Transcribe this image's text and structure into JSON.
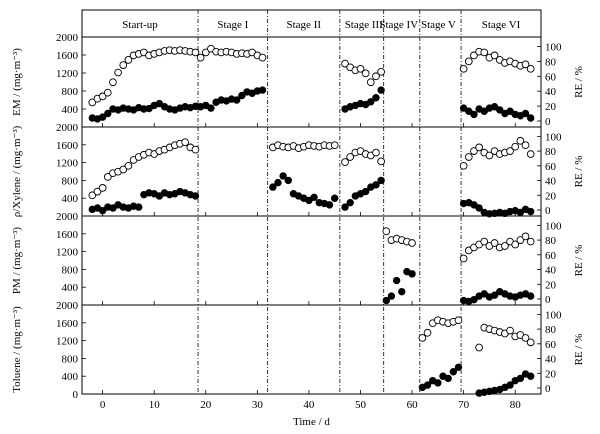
{
  "chart_data": {
    "type": "scatter",
    "x_axis": {
      "label": "Time / d",
      "ticks": [
        0,
        10,
        20,
        30,
        40,
        50,
        60,
        70,
        80
      ],
      "range": [
        -4,
        85
      ]
    },
    "stages": {
      "labels": [
        "Start-up",
        "Stage I",
        "Stage II",
        "Stage III",
        "Stage IV",
        "Stage V",
        "Stage VI"
      ],
      "boundaries": [
        18.5,
        32,
        46,
        54.5,
        61.5,
        69.5
      ]
    },
    "panels": [
      {
        "id": "em",
        "ylabel": "EM / (mg·m⁻³)",
        "ylabel_right": "RE / %",
        "left_ticks": [
          400,
          800,
          1200,
          1600,
          2000
        ],
        "left_range": [
          0,
          2000
        ],
        "right_ticks": [
          0,
          20,
          40,
          60,
          80,
          100
        ],
        "right_range": [
          0,
          110
        ],
        "series": [
          {
            "name": "Concentration",
            "marker": "filled",
            "segments": [
              {
                "x": [
                  -2,
                  -1,
                  0,
                  1,
                  2,
                  3,
                  4,
                  5,
                  6,
                  7,
                  8,
                  9,
                  10,
                  11,
                  12,
                  13,
                  14,
                  15,
                  16,
                  17,
                  18
                ],
                "y": [
                  200,
                  180,
                  220,
                  300,
                  400,
                  380,
                  420,
                  400,
                  380,
                  430,
                  400,
                  410,
                  480,
                  520,
                  450,
                  400,
                  380,
                  420,
                  450,
                  430,
                  460
                ]
              },
              {
                "x": [
                  19,
                  20,
                  21,
                  22,
                  23,
                  24,
                  25,
                  26,
                  27,
                  28,
                  29,
                  30,
                  31
                ],
                "y": [
                  450,
                  480,
                  420,
                  550,
                  600,
                  580,
                  620,
                  600,
                  700,
                  780,
                  750,
                  800,
                  820
                ]
              },
              {
                "x": [
                  47,
                  48,
                  49,
                  50,
                  51,
                  52,
                  53,
                  54
                ],
                "y": [
                  400,
                  450,
                  480,
                  520,
                  500,
                  560,
                  650,
                  820
                ]
              },
              {
                "x": [
                  70,
                  71,
                  72,
                  73,
                  74,
                  75,
                  76,
                  77,
                  78,
                  79,
                  80,
                  81,
                  82,
                  83
                ],
                "y": [
                  420,
                  350,
                  280,
                  400,
                  350,
                  420,
                  450,
                  380,
                  300,
                  350,
                  280,
                  250,
                  300,
                  200
                ]
              }
            ]
          },
          {
            "name": "RE",
            "marker": "open",
            "segments": [
              {
                "x": [
                  -2,
                  -1,
                  0,
                  1,
                  2,
                  3,
                  4,
                  5,
                  6,
                  7,
                  8,
                  9,
                  10,
                  11,
                  12,
                  13,
                  14,
                  15,
                  16,
                  17,
                  18
                ],
                "y": [
                  25,
                  30,
                  33,
                  38,
                  52,
                  65,
                  75,
                  82,
                  88,
                  90,
                  92,
                  88,
                  90,
                  92,
                  94,
                  95,
                  94,
                  95,
                  94,
                  93,
                  92
                ]
              },
              {
                "x": [
                  19,
                  20,
                  21,
                  22,
                  23,
                  24,
                  25,
                  26,
                  27,
                  28,
                  29,
                  30,
                  31
                ],
                "y": [
                  85,
                  92,
                  97,
                  93,
                  92,
                  93,
                  92,
                  90,
                  91,
                  90,
                  92,
                  88,
                  85
                ]
              },
              {
                "x": [
                  47,
                  48,
                  49,
                  50,
                  51,
                  52,
                  53,
                  54
                ],
                "y": [
                  77,
                  72,
                  68,
                  70,
                  64,
                  52,
                  60,
                  66
                ]
              },
              {
                "x": [
                  70,
                  71,
                  72,
                  73,
                  74,
                  75,
                  76,
                  77,
                  78,
                  79,
                  80,
                  81,
                  82,
                  83
                ],
                "y": [
                  70,
                  80,
                  88,
                  93,
                  92,
                  85,
                  88,
                  82,
                  78,
                  80,
                  77,
                  74,
                  76,
                  70
                ]
              }
            ]
          }
        ]
      },
      {
        "id": "xylene",
        "ylabel": "ρ/Xylene / (mg·m⁻³)",
        "ylabel_right": "RE / %",
        "left_ticks": [
          400,
          800,
          1200,
          1600,
          2000
        ],
        "left_range": [
          0,
          2000
        ],
        "right_ticks": [
          0,
          20,
          40,
          60,
          80,
          100
        ],
        "right_range": [
          0,
          110
        ],
        "series": [
          {
            "name": "Concentration",
            "marker": "filled",
            "segments": [
              {
                "x": [
                  -2,
                  -1,
                  0,
                  1,
                  2,
                  3,
                  4,
                  5,
                  6,
                  7,
                  8,
                  9,
                  10,
                  11,
                  12,
                  13,
                  14,
                  15,
                  16,
                  17,
                  18
                ],
                "y": [
                  150,
                  180,
                  120,
                  200,
                  180,
                  250,
                  200,
                  180,
                  220,
                  200,
                  480,
                  520,
                  500,
                  450,
                  520,
                  480,
                  500,
                  550,
                  520,
                  480,
                  450
                ]
              },
              {
                "x": [
                  33,
                  34,
                  35,
                  36,
                  37,
                  38,
                  39,
                  40,
                  41,
                  42,
                  43,
                  44,
                  45
                ],
                "y": [
                  650,
                  750,
                  900,
                  800,
                  500,
                  450,
                  400,
                  350,
                  420,
                  300,
                  280,
                  250,
                  400
                ]
              },
              {
                "x": [
                  47,
                  48,
                  49,
                  50,
                  51,
                  52,
                  53,
                  54
                ],
                "y": [
                  200,
                  300,
                  450,
                  500,
                  550,
                  650,
                  700,
                  800
                ]
              },
              {
                "x": [
                  70,
                  71,
                  72,
                  73,
                  74,
                  75,
                  76,
                  77,
                  78,
                  79,
                  80,
                  81,
                  82,
                  83
                ],
                "y": [
                  280,
                  300,
                  250,
                  180,
                  80,
                  50,
                  60,
                  80,
                  60,
                  100,
                  120,
                  80,
                  150,
                  100
                ]
              }
            ]
          },
          {
            "name": "RE",
            "marker": "open",
            "segments": [
              {
                "x": [
                  -2,
                  -1,
                  0,
                  1,
                  2,
                  3,
                  4,
                  5,
                  6,
                  7,
                  8,
                  9,
                  10,
                  11,
                  12,
                  13,
                  14,
                  15,
                  16,
                  17,
                  18
                ],
                "y": [
                  20,
                  25,
                  30,
                  45,
                  50,
                  52,
                  55,
                  60,
                  68,
                  72,
                  75,
                  78,
                  76,
                  80,
                  82,
                  85,
                  88,
                  90,
                  92,
                  85,
                  82
                ]
              },
              {
                "x": [
                  33,
                  34,
                  35,
                  36,
                  37,
                  38,
                  39,
                  40,
                  41,
                  42,
                  43,
                  44,
                  45
                ],
                "y": [
                  85,
                  88,
                  86,
                  85,
                  87,
                  84,
                  86,
                  88,
                  87,
                  86,
                  88,
                  87,
                  88
                ]
              },
              {
                "x": [
                  47,
                  48,
                  49,
                  50,
                  51,
                  52,
                  53,
                  54
                ],
                "y": [
                  65,
                  72,
                  78,
                  80,
                  76,
                  74,
                  78,
                  66
                ]
              },
              {
                "x": [
                  70,
                  71,
                  72,
                  73,
                  74,
                  75,
                  76,
                  77,
                  78,
                  79,
                  80,
                  81,
                  82,
                  83
                ],
                "y": [
                  60,
                  72,
                  80,
                  85,
                  78,
                  74,
                  80,
                  76,
                  78,
                  80,
                  86,
                  94,
                  88,
                  76
                ]
              }
            ]
          }
        ]
      },
      {
        "id": "pm",
        "ylabel": "PM / (mg·m⁻³)",
        "ylabel_right": "RE / %",
        "left_ticks": [
          400,
          800,
          1200,
          1600,
          2000
        ],
        "left_range": [
          0,
          2000
        ],
        "right_ticks": [
          0,
          20,
          40,
          60,
          80,
          100
        ],
        "right_range": [
          0,
          110
        ],
        "series": [
          {
            "name": "Concentration",
            "marker": "filled",
            "segments": [
              {
                "x": [
                  55,
                  56,
                  57,
                  58,
                  59,
                  60
                ],
                "y": [
                  100,
                  200,
                  550,
                  300,
                  750,
                  700
                ]
              },
              {
                "x": [
                  70,
                  71,
                  72,
                  73,
                  74,
                  75,
                  76,
                  77,
                  78,
                  79,
                  80,
                  81,
                  82,
                  83
                ],
                "y": [
                  100,
                  80,
                  120,
                  200,
                  250,
                  180,
                  220,
                  300,
                  250,
                  200,
                  180,
                  220,
                  250,
                  200
                ]
              }
            ]
          },
          {
            "name": "RE",
            "marker": "open",
            "segments": [
              {
                "x": [
                  55,
                  56,
                  57,
                  58,
                  59,
                  60
                ],
                "y": [
                  92,
                  80,
                  82,
                  80,
                  78,
                  76
                ]
              },
              {
                "x": [
                  70,
                  71,
                  72,
                  73,
                  74,
                  75,
                  76,
                  77,
                  78,
                  79,
                  80,
                  81,
                  82,
                  83
                ],
                "y": [
                  55,
                  66,
                  70,
                  74,
                  78,
                  72,
                  76,
                  70,
                  72,
                  78,
                  74,
                  80,
                  85,
                  78
                ]
              }
            ]
          }
        ]
      },
      {
        "id": "toluene",
        "ylabel": "Toluene / (mg·m⁻³)",
        "ylabel_right": "RE / %",
        "left_ticks": [
          0,
          400,
          800,
          1200,
          1600,
          2000
        ],
        "left_range": [
          0,
          2000
        ],
        "right_ticks": [
          0,
          20,
          40,
          60,
          80,
          100
        ],
        "right_range": [
          0,
          110
        ],
        "series": [
          {
            "name": "Concentration",
            "marker": "filled",
            "segments": [
              {
                "x": [
                  62,
                  63,
                  64,
                  65,
                  66,
                  67,
                  68,
                  69
                ],
                "y": [
                  150,
                  200,
                  300,
                  250,
                  400,
                  350,
                  500,
                  600
                ]
              },
              {
                "x": [
                  73,
                  74,
                  75,
                  76,
                  77,
                  78,
                  79,
                  80,
                  81,
                  82,
                  83
                ],
                "y": [
                  20,
                  40,
                  60,
                  80,
                  100,
                  150,
                  200,
                  300,
                  350,
                  450,
                  400
                ]
              }
            ]
          },
          {
            "name": "RE",
            "marker": "open",
            "segments": [
              {
                "x": [
                  62,
                  63,
                  64,
                  65,
                  66,
                  67,
                  68,
                  69
                ],
                "y": [
                  68,
                  75,
                  88,
                  92,
                  90,
                  88,
                  90,
                  92
                ]
              },
              {
                "x": [
                  73,
                  74,
                  75,
                  76,
                  77,
                  78,
                  79,
                  80,
                  81,
                  82,
                  83
                ],
                "y": [
                  55,
                  82,
                  80,
                  78,
                  76,
                  74,
                  78,
                  70,
                  72,
                  68,
                  62
                ]
              }
            ]
          }
        ]
      }
    ]
  }
}
